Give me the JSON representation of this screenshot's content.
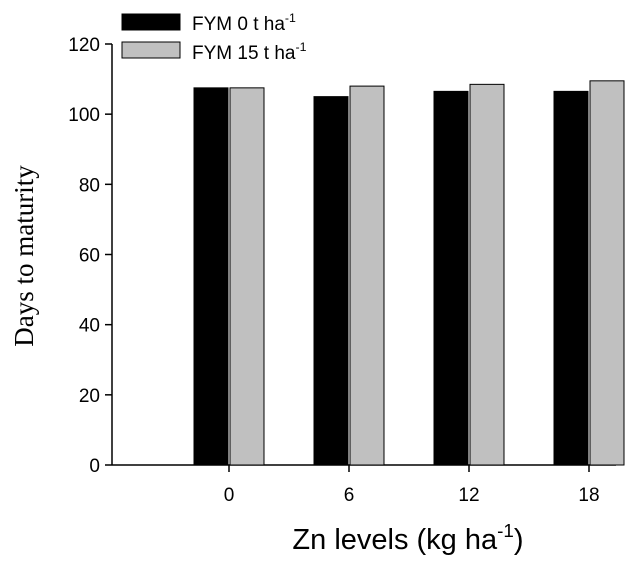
{
  "chart_data": {
    "type": "bar",
    "categories": [
      "0",
      "6",
      "12",
      "18"
    ],
    "series": [
      {
        "name": "FYM 0 t ha",
        "name_sup": "-1",
        "color": "#000000",
        "values": [
          107.5,
          105,
          106.5,
          106.5
        ]
      },
      {
        "name": "FYM 15 t ha",
        "name_sup": "-1",
        "color": "#c0c0c0",
        "values": [
          107.5,
          108,
          108.5,
          109.5
        ]
      }
    ],
    "xlabel": "Zn levels (kg ha",
    "xlabel_sup": "-1",
    "xlabel_end": ")",
    "ylabel": "Days to maturity",
    "ylim": [
      0,
      120
    ],
    "yticks": [
      "0",
      "20",
      "40",
      "60",
      "80",
      "100",
      "120"
    ],
    "legend": "top-left",
    "grid": false
  }
}
